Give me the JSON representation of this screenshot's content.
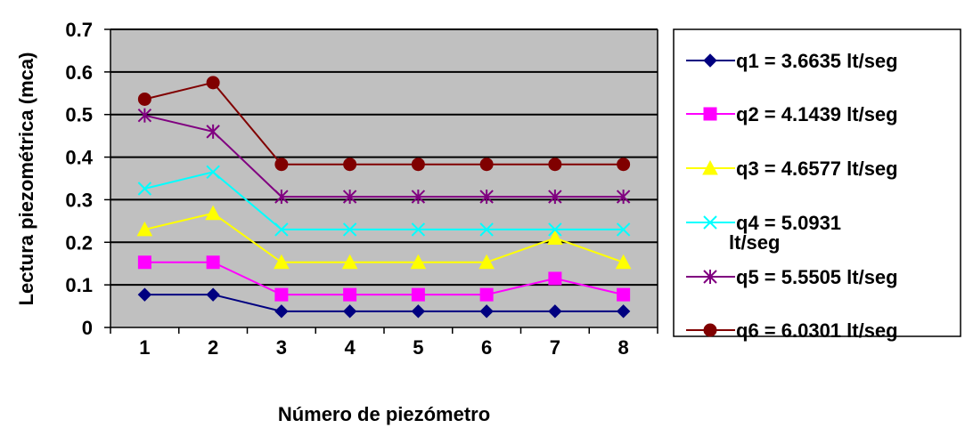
{
  "chart_data": {
    "type": "line",
    "title": "",
    "xlabel": "Número de piezómetro",
    "ylabel": "Lectura piezométrica (mca)",
    "categories": [
      "1",
      "2",
      "3",
      "4",
      "5",
      "6",
      "7",
      "8"
    ],
    "ylim": [
      0,
      0.7
    ],
    "yticks": [
      {
        "value": 0,
        "label": "0"
      },
      {
        "value": 0.1,
        "label": "0.1"
      },
      {
        "value": 0.2,
        "label": "0.2"
      },
      {
        "value": 0.3,
        "label": "0.3"
      },
      {
        "value": 0.4,
        "label": "0.4"
      },
      {
        "value": 0.5,
        "label": "0.5"
      },
      {
        "value": 0.6,
        "label": "0.6"
      },
      {
        "value": 0.7,
        "label": "0.7"
      }
    ],
    "grid": true,
    "plot_background": "#c0c0c0",
    "legend_position": "right",
    "series": [
      {
        "name": "q1 = 3.6635 lt/seg",
        "color": "#000080",
        "marker": "diamond",
        "values": [
          0.077,
          0.077,
          0.038,
          0.038,
          0.038,
          0.038,
          0.038,
          0.038
        ]
      },
      {
        "name": "q2 = 4.1439 lt/seg",
        "color": "#ff00ff",
        "marker": "square",
        "values": [
          0.153,
          0.153,
          0.077,
          0.077,
          0.077,
          0.077,
          0.115,
          0.077
        ]
      },
      {
        "name": "q3 = 4.6577 lt/seg",
        "color": "#ffff00",
        "marker": "triangle",
        "values": [
          0.23,
          0.268,
          0.153,
          0.153,
          0.153,
          0.153,
          0.21,
          0.153
        ]
      },
      {
        "name": "q4 = 5.0931 lt/seg",
        "color": "#00ffff",
        "marker": "x",
        "values": [
          0.326,
          0.365,
          0.23,
          0.23,
          0.23,
          0.23,
          0.23,
          0.23
        ]
      },
      {
        "name": "q5 = 5.5505 lt/seg",
        "color": "#800080",
        "marker": "star",
        "values": [
          0.498,
          0.46,
          0.307,
          0.307,
          0.307,
          0.307,
          0.307,
          0.307
        ]
      },
      {
        "name": "q6 = 6.0301 lt/seg",
        "color": "#800000",
        "marker": "circle",
        "values": [
          0.536,
          0.575,
          0.383,
          0.383,
          0.383,
          0.383,
          0.383,
          0.383
        ]
      }
    ]
  }
}
